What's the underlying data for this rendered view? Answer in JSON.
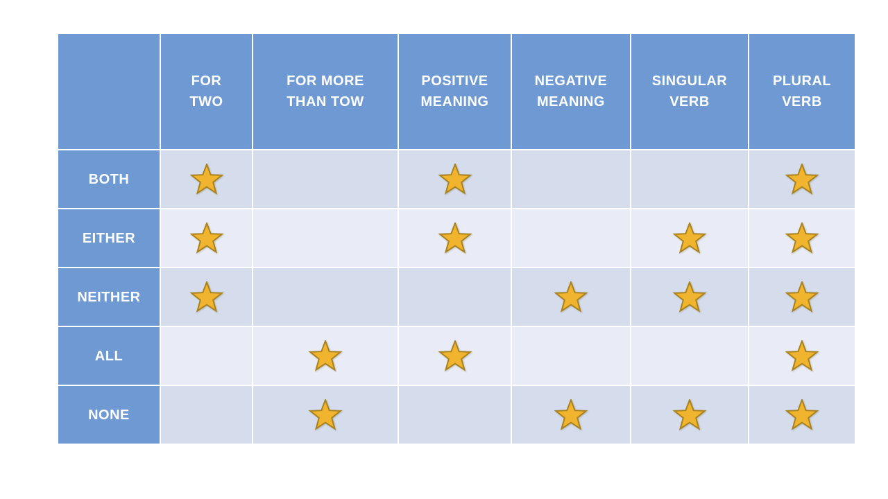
{
  "accent_colors": {
    "header_blue": "#6f99d3",
    "row_band_dark": "#d5dded",
    "row_band_light": "#e9ecf6",
    "grid_line": "#ffffff",
    "header_text": "#ffffff",
    "star_fill": "#f0b42e",
    "star_stroke": "#a8821e"
  },
  "chart_data": {
    "type": "table",
    "title": "",
    "marker": "star-icon",
    "columns": [
      "FOR TWO",
      "FOR MORE THAN TOW",
      "POSITIVE MEANING",
      "NEGATIVE MEANING",
      "SINGULAR VERB",
      "PLURAL VERB"
    ],
    "column_display": [
      "FOR\nTWO",
      "FOR MORE\nTHAN TOW",
      "POSITIVE\nMEANING",
      "NEGATIVE\nMEANING",
      "SINGULAR\nVERB",
      "PLURAL\nVERB"
    ],
    "rows": [
      {
        "label": "BOTH",
        "stars": [
          true,
          false,
          true,
          false,
          false,
          true
        ]
      },
      {
        "label": "EITHER",
        "stars": [
          true,
          false,
          true,
          false,
          true,
          true
        ]
      },
      {
        "label": "NEITHER",
        "stars": [
          true,
          false,
          false,
          true,
          true,
          true
        ]
      },
      {
        "label": "ALL",
        "stars": [
          false,
          true,
          true,
          false,
          false,
          true
        ]
      },
      {
        "label": "NONE",
        "stars": [
          false,
          true,
          false,
          true,
          true,
          true
        ]
      }
    ]
  }
}
